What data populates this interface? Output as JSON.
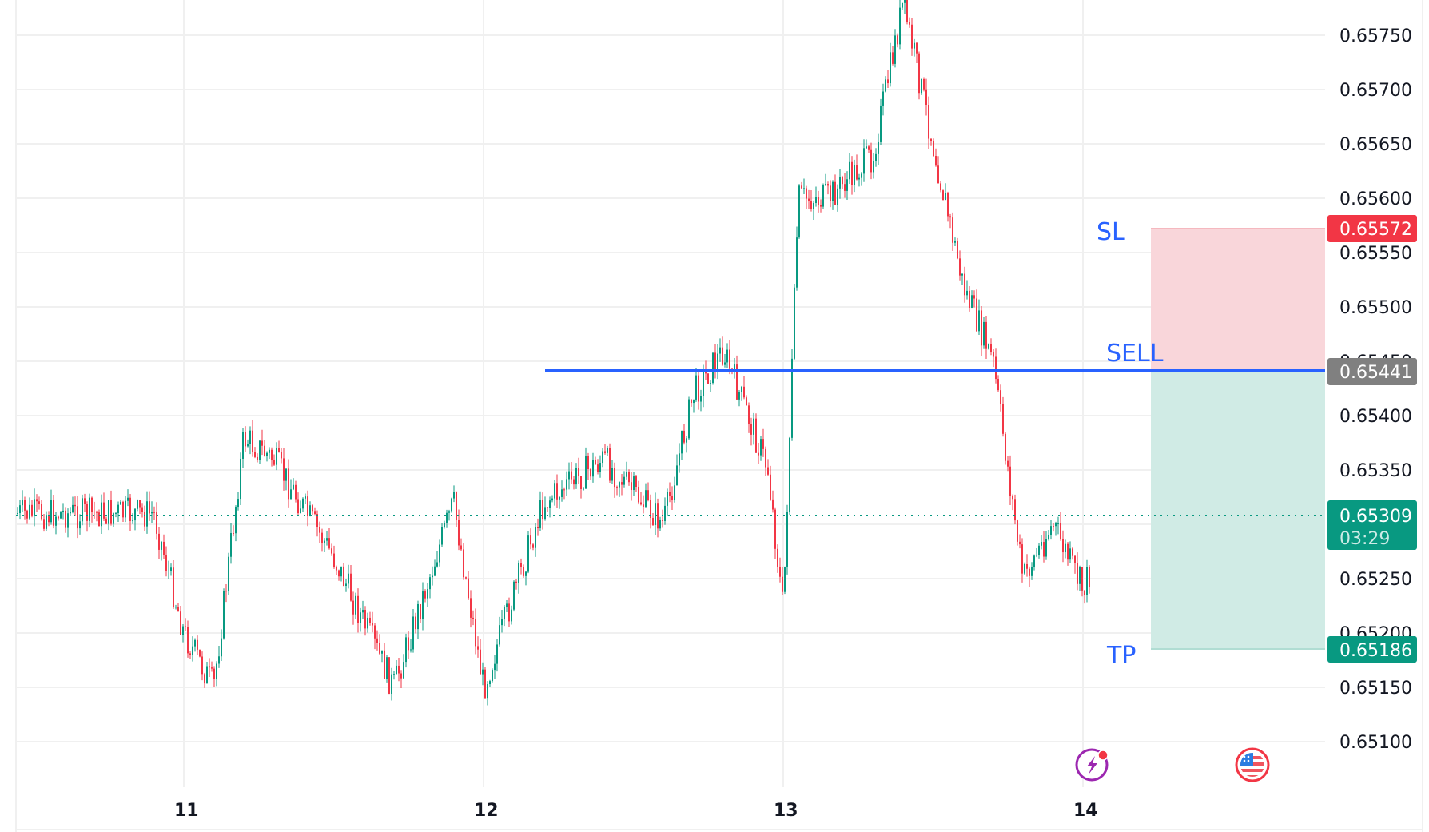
{
  "chart_data": {
    "type": "candlestick",
    "title": "",
    "xlabel": "",
    "ylabel": "",
    "ylim": [
      0.65055,
      0.6579
    ],
    "x_ticks": [
      "11",
      "12",
      "13",
      "14"
    ],
    "y_ticks": [
      "0.65750",
      "0.65700",
      "0.65650",
      "0.65600",
      "0.65550",
      "0.65500",
      "0.65450",
      "0.65400",
      "0.65350",
      "0.65300",
      "0.65250",
      "0.65200",
      "0.65150",
      "0.65100"
    ],
    "grid": true,
    "series": [
      {
        "name": "price_path_approx",
        "x": [
          "10.9",
          "11.0",
          "11.1",
          "11.2",
          "11.3",
          "11.5",
          "11.7",
          "11.9",
          "12.0",
          "12.2",
          "12.4",
          "12.6",
          "12.7",
          "12.8",
          "12.95",
          "13.0",
          "13.05",
          "13.15",
          "13.3",
          "13.4",
          "13.5",
          "13.6",
          "13.7",
          "13.8",
          "13.9",
          "14.0",
          "14.1"
        ],
        "values": [
          0.6531,
          0.652,
          0.6515,
          0.6538,
          0.6536,
          0.6527,
          0.6515,
          0.6532,
          0.6515,
          0.6532,
          0.6536,
          0.653,
          0.6542,
          0.6546,
          0.6535,
          0.6522,
          0.656,
          0.656,
          0.6564,
          0.6578,
          0.6565,
          0.6552,
          0.6545,
          0.6525,
          0.653,
          0.6524,
          0.6531
        ]
      }
    ],
    "annotations": [
      {
        "label": "SL",
        "price": 0.65572
      },
      {
        "label": "SELL",
        "price": 0.65441
      },
      {
        "label": "TP",
        "price": 0.65186
      }
    ],
    "last_price": 0.65309,
    "countdown": "03:29",
    "legend_position": "none"
  },
  "axis": {
    "price_labels": [
      "0.65750",
      "0.65700",
      "0.65650",
      "0.65600",
      "0.65550",
      "0.65500",
      "0.65450",
      "0.65400",
      "0.65350",
      "0.65300",
      "0.65250",
      "0.65200",
      "0.65150",
      "0.65100"
    ],
    "date_labels": [
      "11",
      "12",
      "13",
      "14"
    ]
  },
  "tags": {
    "sl": {
      "price": "0.65572",
      "color": "#f23645"
    },
    "entry": {
      "price": "0.65441",
      "color": "#808080"
    },
    "last": {
      "price": "0.65309",
      "countdown": "03:29",
      "color": "#089981"
    },
    "tp": {
      "price": "0.65186",
      "color": "#089981"
    }
  },
  "labels": {
    "sl": "SL",
    "sell": "SELL",
    "tp": "TP"
  },
  "colors": {
    "up": "#089981",
    "down": "#f23645",
    "sell_line": "#2962ff",
    "risk_zone": "#f9d6da",
    "reward_zone": "#d0ebe5",
    "grid": "#f0f0f0"
  },
  "icons": {
    "events": "lightning-event-icon",
    "economic": "us-flag-icon"
  }
}
